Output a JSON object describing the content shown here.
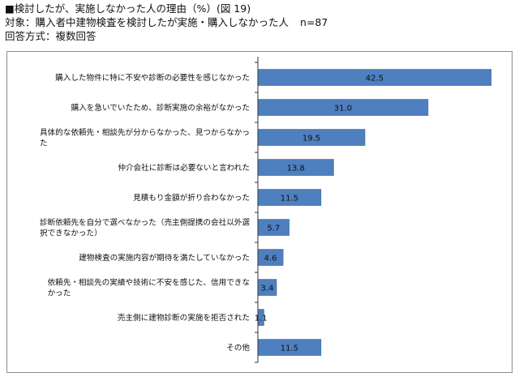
{
  "header": {
    "title": "■検討したが、実施しなかった人の理由（%）(図 19)",
    "target_label": "対象：購入者中建物検査を検討したが実施・購入しなかった人",
    "n_label": "n=87",
    "method": "回答方式：複数回答"
  },
  "colors": {
    "bar": "#4e7fbf",
    "bar_stroke": "#3b6aa8",
    "axis": "#333333",
    "frame": "#8c8c8c"
  },
  "chart_data": {
    "type": "bar",
    "orientation": "horizontal",
    "title": "■検討したが、実施しなかった人の理由（%）(図 19)",
    "xlabel": "",
    "ylabel": "",
    "xlim": [
      0,
      45
    ],
    "grid": false,
    "legend": "none",
    "categories": [
      [
        "購入した物件に特に不安や診断の必要性を感じなかった"
      ],
      [
        "購入を急いでいたため、診断実施の余裕がなかった"
      ],
      [
        "具体的な依頼先・相談先が分からなかった、見つからなかっ",
        "た"
      ],
      [
        "仲介会社に診断は必要ないと言われた"
      ],
      [
        "見積もり金額が折り合わなかった"
      ],
      [
        "診断依頼先を自分で選べなかった（売主側提携の会社以外選",
        "択できなかった）"
      ],
      [
        "建物検査の実施内容が期待を満たしていなかった"
      ],
      [
        "依頼先・相談先の実績や技術に不安を感じた、信用できな",
        "かった"
      ],
      [
        "売主側に建物診断の実施を拒否された"
      ],
      [
        "その他"
      ]
    ],
    "values": [
      42.5,
      31.0,
      19.5,
      13.8,
      11.5,
      5.7,
      4.6,
      3.4,
      1.1,
      11.5
    ],
    "value_labels": [
      "42.5",
      "31.0",
      "19.5",
      "13.8",
      "11.5",
      "5.7",
      "4.6",
      "3.4",
      "1.1",
      "11.5"
    ]
  }
}
